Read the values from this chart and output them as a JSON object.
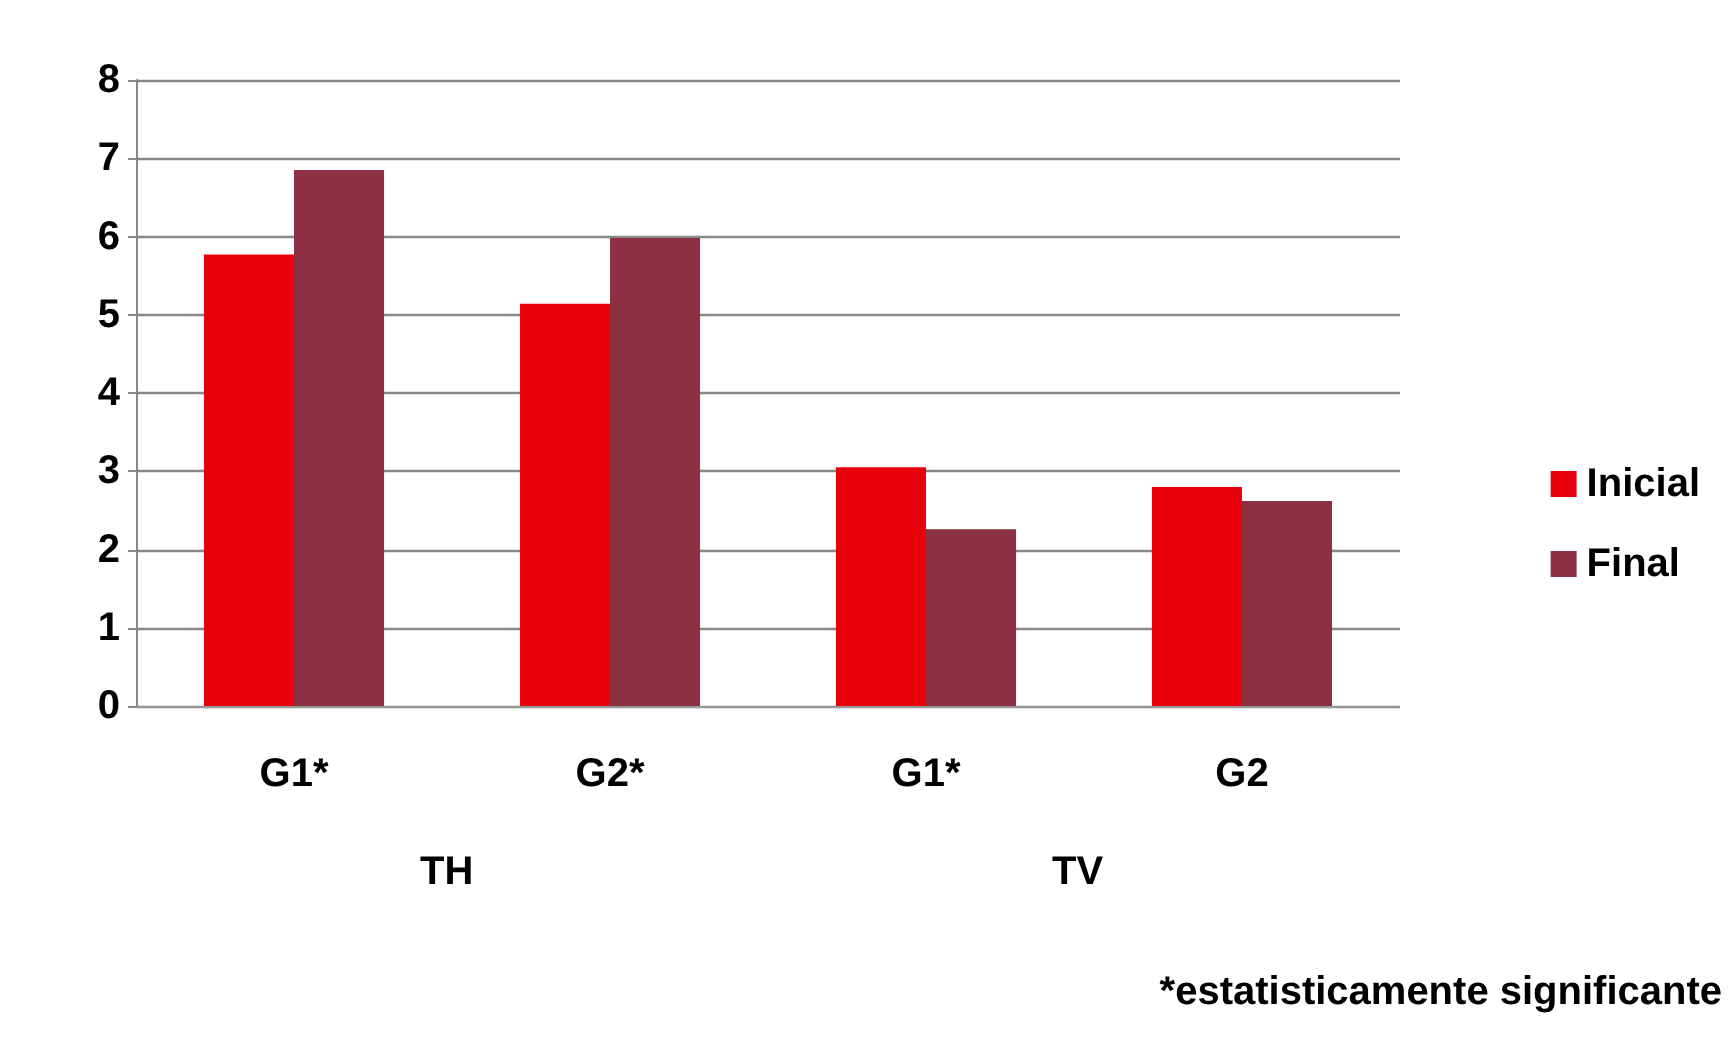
{
  "chart_data": {
    "type": "bar",
    "categories": [
      "G1*",
      "G2*",
      "G1*",
      "G2"
    ],
    "series": [
      {
        "name": "Inicial",
        "color": "#e8000a",
        "values": [
          5.77,
          5.14,
          3.05,
          2.8
        ]
      },
      {
        "name": "Final",
        "color": "#8e3044",
        "values": [
          6.85,
          5.98,
          2.26,
          2.62
        ]
      }
    ],
    "ylim": [
      0,
      8
    ],
    "yticks": [
      0,
      1,
      2,
      3,
      4,
      5,
      6,
      7,
      8
    ],
    "grid": "y",
    "legend": "right",
    "annotations": [
      "TH",
      "TV",
      "*estatisticamente significante"
    ]
  }
}
